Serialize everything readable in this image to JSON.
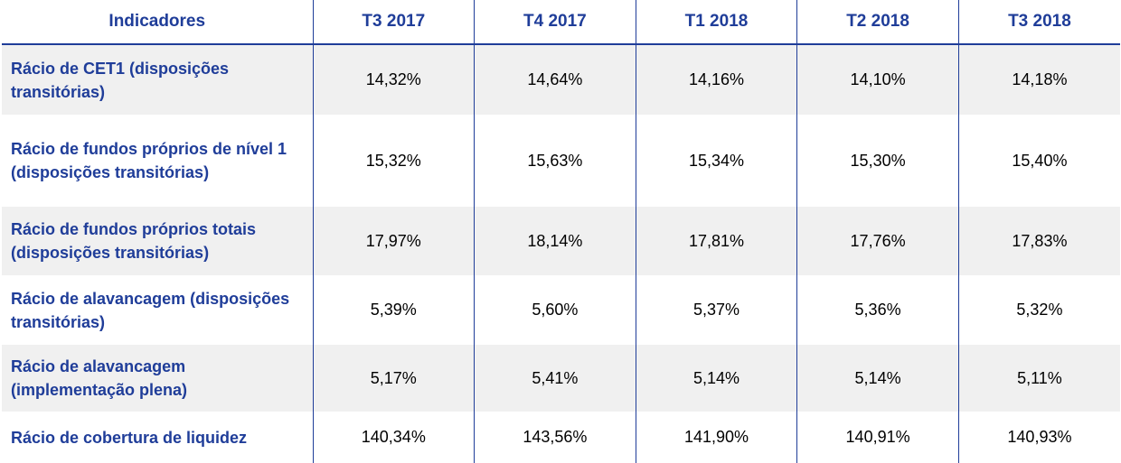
{
  "header": {
    "indicators_label": "Indicadores",
    "periods": [
      "T3 2017",
      "T4 2017",
      "T1 2018",
      "T2 2018",
      "T3 2018"
    ]
  },
  "rows": [
    {
      "label": "Rácio de CET1 (disposições transitórias)",
      "values": [
        "14,32%",
        "14,64%",
        "14,16%",
        "14,10%",
        "14,18%"
      ]
    },
    {
      "label": "Rácio de fundos próprios de nível 1 (disposições transitórias)",
      "values": [
        "15,32%",
        "15,63%",
        "15,34%",
        "15,30%",
        "15,40%"
      ]
    },
    {
      "label": "Rácio de fundos próprios totais (disposições transitórias)",
      "values": [
        "17,97%",
        "18,14%",
        "17,81%",
        "17,76%",
        "17,83%"
      ]
    },
    {
      "label": "Rácio de alavancagem (disposições transitórias)",
      "values": [
        "5,39%",
        "5,60%",
        "5,37%",
        "5,36%",
        "5,32%"
      ]
    },
    {
      "label": "Rácio de alavancagem (implementação plena)",
      "values": [
        "5,17%",
        "5,41%",
        "5,14%",
        "5,14%",
        "5,11%"
      ]
    },
    {
      "label": "Rácio de cobertura de liquidez",
      "values": [
        "140,34%",
        "143,56%",
        "141,90%",
        "140,91%",
        "140,93%"
      ]
    }
  ],
  "colors": {
    "accent": "#1f3d99",
    "shade": "#f0f0f0"
  }
}
